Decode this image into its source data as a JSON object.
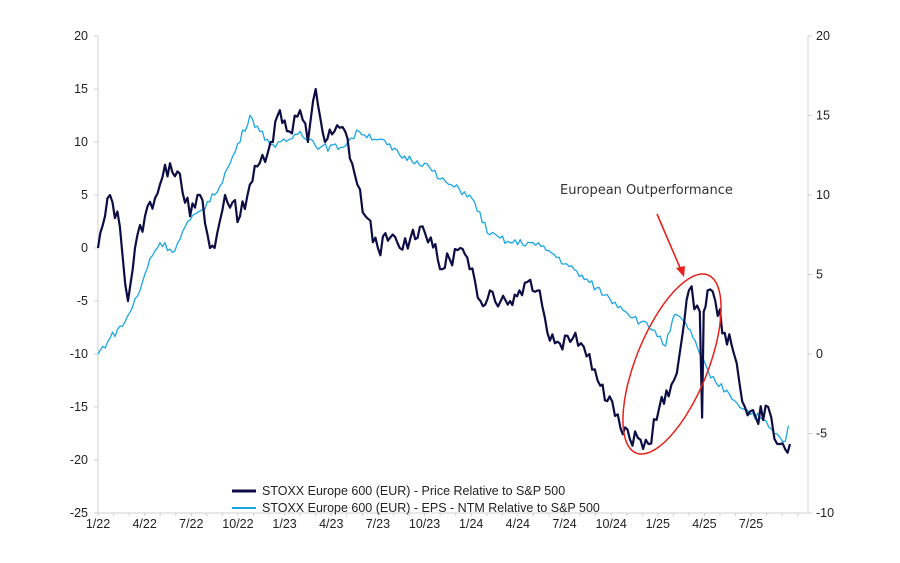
{
  "chart_data": {
    "type": "line",
    "title": "",
    "x_unit": "months since Jan 2022",
    "x_ticks": [
      "1/22",
      "4/22",
      "7/22",
      "10/22",
      "1/23",
      "4/23",
      "7/23",
      "10/23",
      "1/24",
      "4/24",
      "7/24",
      "10/24",
      "1/25",
      "4/25",
      "7/25"
    ],
    "y_left": {
      "ticks": [
        "20",
        "15",
        "10",
        "5",
        "0",
        "-5",
        "-10",
        "-15",
        "-20",
        "-25"
      ],
      "ylim": [
        -25,
        20
      ]
    },
    "y_right": {
      "ticks": [
        "20",
        "15",
        "10",
        "5",
        "0",
        "-5",
        "-10"
      ],
      "ylim": [
        -10,
        20
      ]
    },
    "grid": false,
    "legend_position": "bottom-center",
    "series": [
      {
        "name": "STOXX Europe 600 (EUR) - Price Relative to S&P 500",
        "axis": "left",
        "color": "#0d0d45",
        "points": [
          [
            0,
            0
          ],
          [
            0.45,
            3
          ],
          [
            0.77,
            5
          ],
          [
            1.41,
            2
          ],
          [
            1.93,
            -5
          ],
          [
            2.38,
            0
          ],
          [
            3.02,
            3
          ],
          [
            3.99,
            6
          ],
          [
            4.63,
            8
          ],
          [
            5.27,
            7
          ],
          [
            5.92,
            3
          ],
          [
            6.56,
            5
          ],
          [
            7.2,
            0
          ],
          [
            7.5,
            0
          ],
          [
            8.17,
            5
          ],
          [
            9.13,
            3
          ],
          [
            9.77,
            6
          ],
          [
            10.4,
            8
          ],
          [
            11.1,
            10
          ],
          [
            11.7,
            13
          ],
          [
            12.3,
            11
          ],
          [
            13.0,
            13
          ],
          [
            13.5,
            10
          ],
          [
            14.0,
            15
          ],
          [
            14.6,
            10
          ],
          [
            15.2,
            11
          ],
          [
            15.9,
            11
          ],
          [
            16.5,
            7
          ],
          [
            17.2,
            3
          ],
          [
            18.0,
            0
          ],
          [
            18.8,
            1
          ],
          [
            19.4,
            0
          ],
          [
            20.1,
            1
          ],
          [
            20.7,
            2
          ],
          [
            21.4,
            1
          ],
          [
            22.0,
            -2
          ],
          [
            22.6,
            -1
          ],
          [
            23.3,
            0
          ],
          [
            23.9,
            -2
          ],
          [
            24.6,
            -5
          ],
          [
            25.2,
            -4
          ],
          [
            25.9,
            -5
          ],
          [
            26.5,
            -5
          ],
          [
            27.1,
            -4
          ],
          [
            27.8,
            -3
          ],
          [
            28.4,
            -4
          ],
          [
            28.9,
            -8
          ],
          [
            29.7,
            -9
          ],
          [
            30.7,
            -8
          ],
          [
            31.6,
            -10
          ],
          [
            32.3,
            -13
          ],
          [
            32.9,
            -14
          ],
          [
            33.6,
            -17
          ],
          [
            34.2,
            -18
          ],
          [
            35.4,
            -18.5
          ],
          [
            36.1,
            -15
          ],
          [
            36.7,
            -14
          ],
          [
            37.4,
            -10
          ],
          [
            37.7,
            -7
          ],
          [
            38.0,
            -4
          ],
          [
            38.7,
            -6
          ],
          [
            38.85,
            -16
          ],
          [
            38.95,
            -6
          ],
          [
            39.2,
            -4
          ],
          [
            39.7,
            -5
          ],
          [
            40.3,
            -8
          ],
          [
            40.9,
            -10
          ],
          [
            41.6,
            -15
          ],
          [
            42.3,
            -16
          ],
          [
            43.1,
            -15
          ],
          [
            43.5,
            -18
          ],
          [
            44.2,
            -19
          ],
          [
            44.5,
            -18.5
          ]
        ]
      },
      {
        "name": "STOXX Europe 600 (EUR) - EPS - NTM Relative to S&P 500",
        "axis": "right",
        "color": "#1aa7e6",
        "points": [
          [
            0,
            0
          ],
          [
            0.77,
            1
          ],
          [
            1.73,
            2
          ],
          [
            2.7,
            4
          ],
          [
            3.34,
            6
          ],
          [
            3.99,
            7
          ],
          [
            4.95,
            6.5
          ],
          [
            5.6,
            8
          ],
          [
            6.56,
            9
          ],
          [
            7.5,
            10
          ],
          [
            8.5,
            12
          ],
          [
            9.77,
            15
          ],
          [
            10.4,
            14
          ],
          [
            11.4,
            13
          ],
          [
            12.3,
            13.5
          ],
          [
            13.0,
            14
          ],
          [
            14.3,
            13
          ],
          [
            15.6,
            13
          ],
          [
            16.8,
            14
          ],
          [
            18.1,
            13.5
          ],
          [
            19.4,
            12.5
          ],
          [
            21.0,
            12
          ],
          [
            22.0,
            11
          ],
          [
            22.9,
            10.5
          ],
          [
            23.9,
            10
          ],
          [
            25.2,
            7.5
          ],
          [
            26.5,
            7
          ],
          [
            27.8,
            7
          ],
          [
            29.0,
            6.5
          ],
          [
            30.3,
            5.5
          ],
          [
            31.6,
            4.5
          ],
          [
            32.9,
            3.5
          ],
          [
            33.6,
            3
          ],
          [
            34.9,
            2
          ],
          [
            35.8,
            1.5
          ],
          [
            36.5,
            0.5
          ],
          [
            37.1,
            2.5
          ],
          [
            38.1,
            1.5
          ],
          [
            38.7,
            0
          ],
          [
            39.4,
            -1.5
          ],
          [
            40.6,
            -2.5
          ],
          [
            41.6,
            -3.5
          ],
          [
            42.6,
            -4
          ],
          [
            43.5,
            -5
          ],
          [
            44.2,
            -5.5
          ],
          [
            44.4,
            -4.5
          ]
        ]
      }
    ],
    "annotation": {
      "text": "European Outperformance",
      "color": "#e8221b"
    }
  }
}
